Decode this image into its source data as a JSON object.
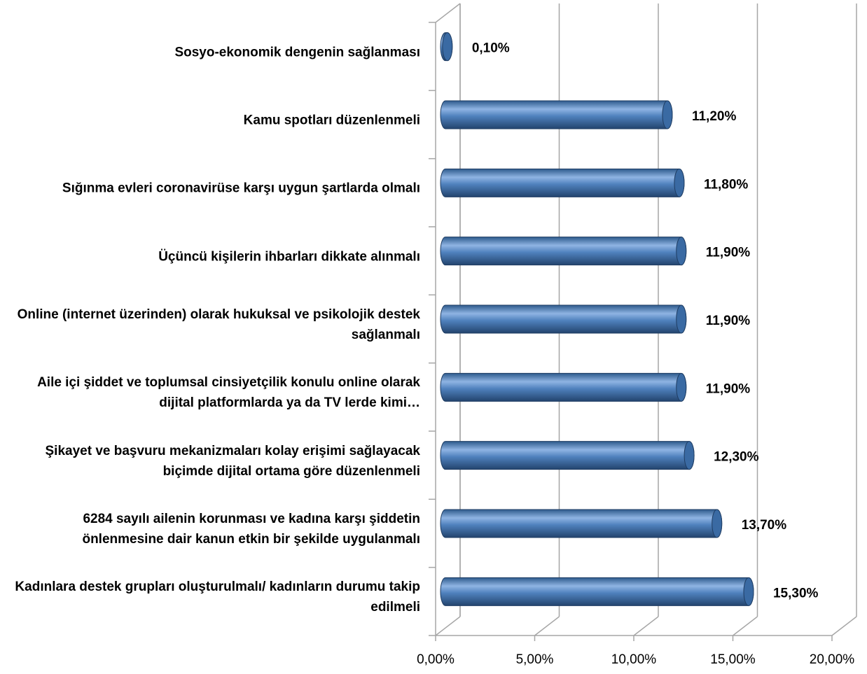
{
  "chart_data": {
    "type": "bar",
    "orientation": "horizontal",
    "categories": [
      "Sosyo-ekonomik dengenin sağlanması",
      "Kamu spotları düzenlenmeli",
      "Sığınma evleri coronavirüse karşı uygun şartlarda olmalı",
      "Üçüncü kişilerin ihbarları dikkate alınmalı",
      "Online (internet üzerinden) olarak hukuksal ve psikolojik destek sağlanmalı",
      "Aile içi şiddet ve toplumsal cinsiyetçilik konulu online olarak dijital platformlarda ya da TV lerde kimi…",
      "Şikayet ve başvuru mekanizmaları kolay erişimi sağlayacak biçimde dijital ortama göre düzenlenmeli",
      "6284 sayılı ailenin korunması ve kadına karşı şiddetin önlenmesine dair kanun etkin bir şekilde uygulanmalı",
      "Kadınlara destek grupları oluşturulmalı/ kadınların durumu takip edilmeli"
    ],
    "values": [
      0.1,
      11.2,
      11.8,
      11.9,
      11.9,
      11.9,
      12.3,
      13.7,
      15.3
    ],
    "value_labels": [
      "0,10%",
      "11,20%",
      "11,80%",
      "11,90%",
      "11,90%",
      "11,90%",
      "12,30%",
      "13,70%",
      "15,30%"
    ],
    "color": "#4f81bd",
    "xlim": [
      0,
      20
    ],
    "xticks": [
      {
        "value": 0,
        "label": "0,00%"
      },
      {
        "value": 5,
        "label": "5,00%"
      },
      {
        "value": 10,
        "label": "10,00%"
      },
      {
        "value": 15,
        "label": "15,00%"
      },
      {
        "value": 20,
        "label": "20,00%"
      }
    ],
    "grid": true
  }
}
